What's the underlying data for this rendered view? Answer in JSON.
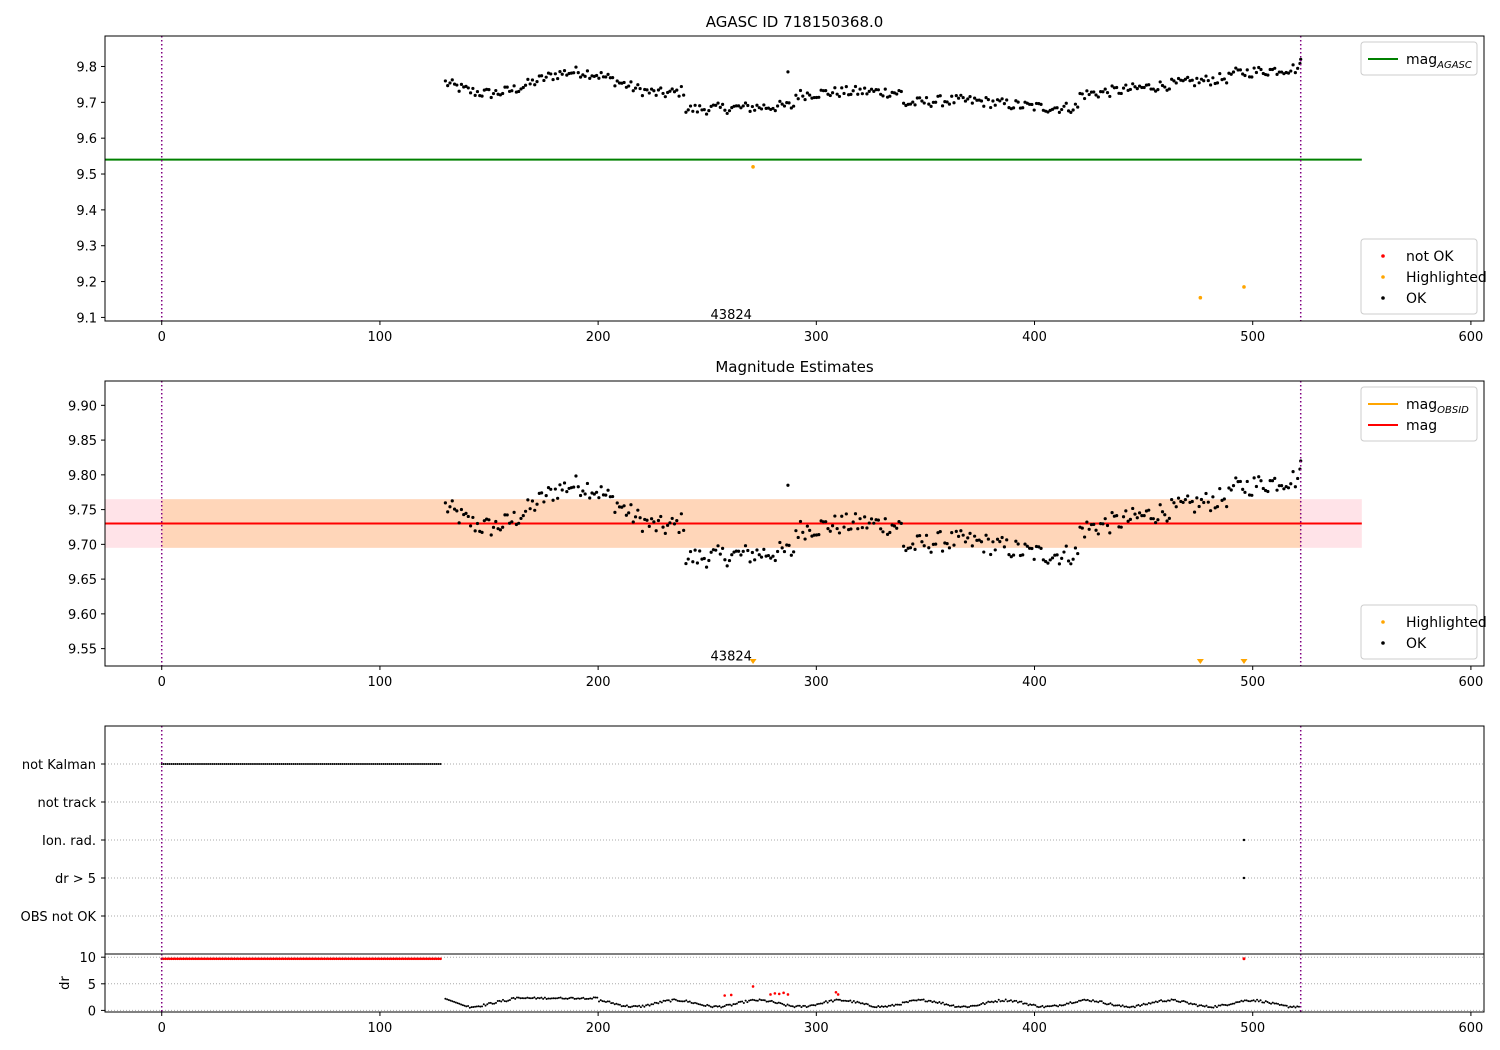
{
  "chart_data": [
    {
      "type": "scatter",
      "title": "AGASC ID 718150368.0",
      "xlim": [
        -26,
        606
      ],
      "ylim": [
        9.09,
        9.885
      ],
      "xticks": [
        0,
        100,
        200,
        300,
        400,
        500,
        600
      ],
      "yticks": [
        9.1,
        9.2,
        9.3,
        9.4,
        9.5,
        9.6,
        9.7,
        9.8
      ],
      "ytick_decimals": 1,
      "annotation": {
        "text": "43824",
        "x": 261,
        "y": 9.11
      },
      "vlines": [
        0,
        522
      ],
      "hlines": [
        {
          "name": "mag_AGASC",
          "y": 9.54,
          "x": [
            -26,
            550
          ],
          "color": "#008000"
        }
      ],
      "legends": [
        {
          "position": "top-right",
          "items": [
            {
              "label": "mag",
              "sub": "AGASC",
              "kind": "line",
              "color": "#008000"
            }
          ]
        },
        {
          "position": "bottom-right",
          "items": [
            {
              "label": "not OK",
              "kind": "dot",
              "color": "#ff0000"
            },
            {
              "label": "Highlighted",
              "kind": "dot",
              "color": "#ffa500"
            },
            {
              "label": "OK",
              "kind": "dot",
              "color": "#000000"
            }
          ]
        }
      ],
      "series": [
        {
          "name": "OK",
          "color": "#000000",
          "x_range": [
            130,
            522
          ],
          "baseline_mag": 9.73
        },
        {
          "name": "Highlighted",
          "color": "#ffa500",
          "x": [
            271,
            476,
            496
          ],
          "y": [
            9.52,
            9.155,
            9.185
          ]
        }
      ]
    },
    {
      "type": "scatter",
      "title": "Magnitude Estimates",
      "xlim": [
        -26,
        606
      ],
      "ylim": [
        9.525,
        9.935
      ],
      "xticks": [
        0,
        100,
        200,
        300,
        400,
        500,
        600
      ],
      "yticks": [
        9.55,
        9.6,
        9.65,
        9.7,
        9.75,
        9.8,
        9.85,
        9.9
      ],
      "ytick_decimals": 2,
      "annotation": {
        "text": "43824",
        "x": 261,
        "y": 9.54
      },
      "vlines": [
        0,
        522
      ],
      "hlines": [
        {
          "name": "mag",
          "y": 9.73,
          "x": [
            -26,
            550
          ],
          "color": "#ff0000"
        }
      ],
      "bands": [
        {
          "y": [
            9.695,
            9.765
          ],
          "x": [
            -26,
            550
          ],
          "color": "#ffc0cb",
          "opacity": 0.45
        },
        {
          "y": [
            9.695,
            9.765
          ],
          "x": [
            0,
            522
          ],
          "color": "#ffa500",
          "opacity": 0.2
        }
      ],
      "markers_below": {
        "color": "#ffa500",
        "x": [
          271,
          476,
          496
        ]
      },
      "legends": [
        {
          "position": "top-right",
          "items": [
            {
              "label": "mag",
              "sub": "OBSID",
              "kind": "line",
              "color": "#ffa500"
            },
            {
              "label": "mag",
              "kind": "line",
              "color": "#ff0000"
            }
          ]
        },
        {
          "position": "bottom-right",
          "items": [
            {
              "label": "Highlighted",
              "kind": "dot",
              "color": "#ffa500"
            },
            {
              "label": "OK",
              "kind": "dot",
              "color": "#000000"
            }
          ]
        }
      ],
      "series": [
        {
          "name": "OK",
          "color": "#000000",
          "x_range": [
            130,
            522
          ],
          "baseline_mag": 9.73
        }
      ]
    },
    {
      "type": "scatter",
      "title": "",
      "xlim": [
        -26,
        606
      ],
      "xticks": [
        0,
        100,
        200,
        300,
        400,
        500,
        600
      ],
      "vlines": [
        0,
        522
      ],
      "flag_rows": [
        "not Kalman",
        "not track",
        "Ion. rad.",
        "dr > 5",
        "OBS not OK"
      ],
      "flags": [
        {
          "row": "not Kalman",
          "x_range": [
            0,
            128
          ],
          "color": "#000000"
        },
        {
          "row": "Ion. rad.",
          "x": [
            496
          ],
          "color": "#000000"
        },
        {
          "row": "dr > 5",
          "x": [
            496
          ],
          "color": "#000000"
        }
      ],
      "dr_panel": {
        "ylabel": "dr",
        "ylim": [
          -0.3,
          10.6
        ],
        "yticks": [
          0,
          5,
          10
        ],
        "clipped": {
          "x_range": [
            0,
            128
          ],
          "y": 9.7,
          "color": "#ff0000"
        },
        "clipped_extra": [
          {
            "x": 496,
            "y": 9.7,
            "color": "#ff0000"
          }
        ],
        "ok_x_range": [
          130,
          522
        ],
        "red_points": {
          "x": [
            258,
            261,
            271,
            279,
            281,
            283,
            285,
            287,
            309,
            310
          ],
          "y": [
            2.8,
            2.9,
            4.5,
            3.0,
            3.2,
            3.1,
            3.3,
            3.0,
            3.4,
            3.0
          ]
        }
      }
    }
  ]
}
